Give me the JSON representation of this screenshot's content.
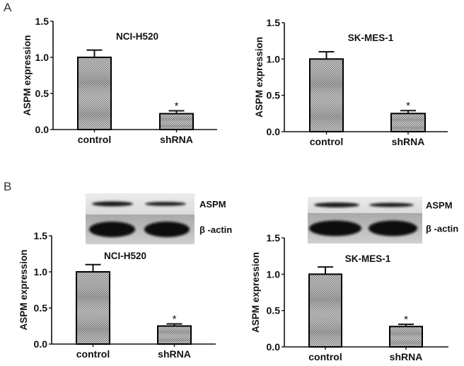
{
  "figure": {
    "panel_labels": [
      "A",
      "B"
    ]
  },
  "colors": {
    "axis": "#111111",
    "bar_fill_dark": "#8a8a8a",
    "bar_fill_light": "#d6d6d6",
    "bar_border": "#000000",
    "text": "#111111",
    "blot_bg_top": "#e6e6e6",
    "blot_bg_bottom": "#bdbdbd",
    "band": "#111111"
  },
  "chart_data": [
    {
      "panel": "A",
      "type": "bar",
      "title": "NCI-H520",
      "xlabel": "",
      "ylabel": "ASPM expression",
      "categories": [
        "control",
        "shRNA"
      ],
      "values": [
        1.0,
        0.22
      ],
      "error": [
        0.1,
        0.04
      ],
      "significance": [
        "",
        "*"
      ],
      "yticks": [
        "0.0",
        "0.5",
        "1.0",
        "1.5"
      ],
      "ylim": [
        0,
        1.5
      ],
      "grid": false,
      "legend": null
    },
    {
      "panel": "A",
      "type": "bar",
      "title": "SK-MES-1",
      "xlabel": "",
      "ylabel": "ASPM expression",
      "categories": [
        "control",
        "shRNA"
      ],
      "values": [
        1.0,
        0.25
      ],
      "error": [
        0.1,
        0.04
      ],
      "significance": [
        "",
        "*"
      ],
      "yticks": [
        "0.0",
        "0.5",
        "1.0",
        "1.5"
      ],
      "ylim": [
        0,
        1.5
      ],
      "grid": false,
      "legend": null
    },
    {
      "panel": "B",
      "type": "bar",
      "title": "NCI-H520",
      "xlabel": "",
      "ylabel": "ASPM expression",
      "categories": [
        "control",
        "shRNA"
      ],
      "values": [
        1.0,
        0.25
      ],
      "error": [
        0.1,
        0.03
      ],
      "significance": [
        "",
        "*"
      ],
      "yticks": [
        "0.0",
        "0.5",
        "1.0",
        "1.5"
      ],
      "ylim": [
        0,
        1.5
      ],
      "grid": false,
      "legend": null,
      "western_blot": {
        "rows": [
          "ASPM",
          "β -actin"
        ],
        "lanes": [
          "control",
          "shRNA"
        ]
      }
    },
    {
      "panel": "B",
      "type": "bar",
      "title": "SK-MES-1",
      "xlabel": "",
      "ylabel": "ASPM expression",
      "categories": [
        "control",
        "shRNA"
      ],
      "values": [
        1.0,
        0.28
      ],
      "error": [
        0.1,
        0.03
      ],
      "significance": [
        "",
        "*"
      ],
      "yticks": [
        "0.0",
        "0.5",
        "1.0",
        "1.5"
      ],
      "ylim": [
        0,
        1.5
      ],
      "grid": false,
      "legend": null,
      "western_blot": {
        "rows": [
          "ASPM",
          "β -actin"
        ],
        "lanes": [
          "control",
          "shRNA"
        ]
      }
    }
  ]
}
